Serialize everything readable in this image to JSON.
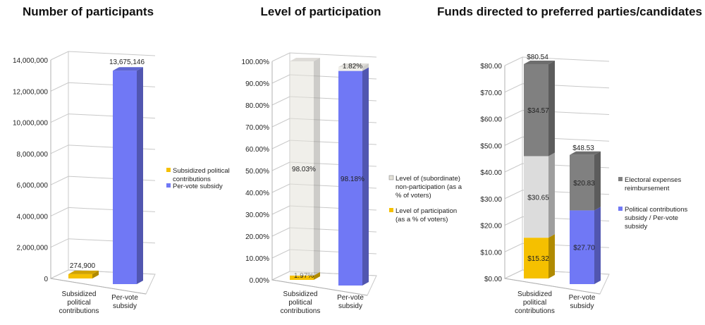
{
  "chart_data": [
    {
      "type": "bar",
      "title": "Number of participants",
      "categories": [
        "Subsidized political contributions",
        "Per-vote subsidy"
      ],
      "ylim": [
        0,
        14000000
      ],
      "yticks": [
        "0",
        "2,000,000",
        "4,000,000",
        "6,000,000",
        "8,000,000",
        "10,000,000",
        "12,000,000",
        "14,000,000"
      ],
      "grid": true,
      "legend_position": "right",
      "series": [
        {
          "values": [
            274900,
            13675146
          ],
          "labels": [
            "274,900",
            "13,675,146"
          ],
          "colors": [
            "#f5c000",
            "#7078f5"
          ]
        }
      ],
      "legend": [
        {
          "name": "Subsidized political contributions",
          "color": "#f5c000"
        },
        {
          "name": "Per-vote subsidy",
          "color": "#7078f5"
        }
      ]
    },
    {
      "type": "bar",
      "stacked": true,
      "title": "Level of participation",
      "categories": [
        "Subsidized political contributions",
        "Per-vote subsidy"
      ],
      "ylim": [
        0,
        100
      ],
      "yticks": [
        "0.00%",
        "10.00%",
        "20.00%",
        "30.00%",
        "40.00%",
        "50.00%",
        "60.00%",
        "70.00%",
        "80.00%",
        "90.00%",
        "100.00%"
      ],
      "grid": true,
      "legend_position": "right",
      "series": [
        {
          "name": "Level of participation (as a % of voters)",
          "values": [
            1.97,
            98.18
          ],
          "labels": [
            "1.97%",
            "98.18%"
          ],
          "colors": [
            "#f5c000",
            "#7078f5"
          ]
        },
        {
          "name": "Level of (subordinate) non-participation (as a % of voters)",
          "values": [
            98.03,
            1.82
          ],
          "labels": [
            "98.03%",
            "1.82%"
          ],
          "colors": [
            "#e4e2d8",
            "#e4e2d8"
          ]
        }
      ],
      "legend": [
        {
          "name": "Level of  (subordinate) non-participation (as a % of voters)",
          "color": "#e4e2d8"
        },
        {
          "name": "Level of participation (as a % of voters)",
          "color": "#f5c000"
        }
      ]
    },
    {
      "type": "bar",
      "stacked": true,
      "title": "Funds directed to preferred parties/candidates",
      "categories": [
        "Subsidized political contributions",
        "Per-vote subsidy"
      ],
      "ylim": [
        0,
        80
      ],
      "yticks": [
        "$0.00",
        "$10.00",
        "$20.00",
        "$30.00",
        "$40.00",
        "$50.00",
        "$60.00",
        "$70.00",
        "$80.00"
      ],
      "grid": true,
      "legend_position": "right",
      "series": [
        {
          "name": "Political contributions subsidy / Per-vote subsidy",
          "values": [
            15.32,
            27.7
          ],
          "labels": [
            "$15.32",
            "$27.70"
          ],
          "colors": [
            "#f5c000",
            "#7078f5"
          ]
        },
        {
          "values": [
            30.65,
            0
          ],
          "labels": [
            "$30.65",
            ""
          ],
          "colors": [
            "#dcdcdc",
            "#dcdcdc"
          ]
        },
        {
          "name": "Electoral expenses reimbursement",
          "values": [
            34.57,
            20.83
          ],
          "labels": [
            "$34.57",
            "$20.83"
          ],
          "colors": [
            "#808080",
            "#808080"
          ]
        }
      ],
      "totals": [
        "$80.54",
        "$48.53"
      ],
      "legend": [
        {
          "name": "Electoral expenses reimbursement",
          "color": "#808080"
        },
        {
          "name": "Political contributions subsidy / Per-vote subsidy",
          "color": "#7078f5"
        }
      ]
    }
  ]
}
